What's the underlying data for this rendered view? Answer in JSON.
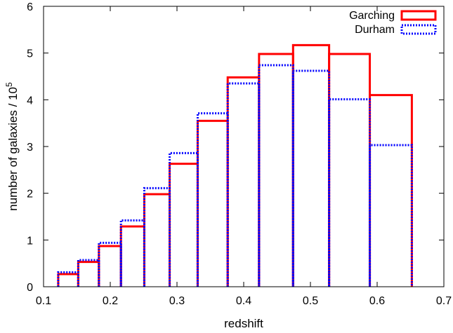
{
  "chart_data": {
    "type": "bar",
    "subtype": "histogram-outline",
    "xlabel": "redshift",
    "ylabel_prefix": "number of galaxies / 10",
    "ylabel_exponent": "5",
    "xlim": [
      0.1,
      0.7
    ],
    "ylim": [
      0,
      6
    ],
    "xticks": [
      0.1,
      0.2,
      0.3,
      0.4,
      0.5,
      0.6,
      0.7
    ],
    "xtick_labels": [
      "0.1",
      "0.2",
      "0.3",
      "0.4",
      "0.5",
      "0.6",
      "0.7"
    ],
    "yticks": [
      0,
      1,
      2,
      3,
      4,
      5,
      6
    ],
    "ytick_labels": [
      "0",
      "1",
      "2",
      "3",
      "4",
      "5",
      "6"
    ],
    "bin_edges": [
      0.122,
      0.152,
      0.183,
      0.216,
      0.251,
      0.289,
      0.331,
      0.376,
      0.423,
      0.474,
      0.528,
      0.589,
      0.652
    ],
    "grid": false,
    "legend_position": "top-right",
    "series": [
      {
        "name": "Garching",
        "color": "#ff0000",
        "style": "solid",
        "values": [
          0.27,
          0.53,
          0.87,
          1.29,
          1.98,
          2.63,
          3.55,
          4.48,
          4.98,
          5.17,
          4.98,
          4.1
        ]
      },
      {
        "name": "Durham",
        "color": "#0000ff",
        "style": "dotted",
        "values": [
          0.31,
          0.57,
          0.94,
          1.42,
          2.11,
          2.86,
          3.71,
          4.35,
          4.74,
          4.62,
          4.01,
          3.03
        ]
      }
    ]
  }
}
